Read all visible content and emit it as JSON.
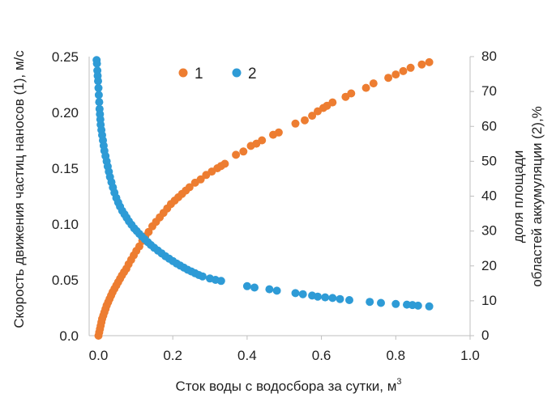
{
  "chart_data": {
    "type": "scatter",
    "xlabel": "Сток воды с водосбора за сутки, м",
    "xlabel_sup": "3",
    "ylabel_left": "Скорость движения частиц наносов (1), м/с",
    "ylabel_right_line1": "доля площади",
    "ylabel_right_line2": "областей аккумуляции (2),%",
    "xlim": [
      -0.025,
      1.0
    ],
    "ylim_left": [
      0,
      0.25
    ],
    "ylim_right": [
      0,
      80
    ],
    "x_ticks": [
      0.0,
      0.2,
      0.4,
      0.6,
      0.8,
      1.0
    ],
    "x_tick_labels": [
      "0.0",
      "0.2",
      "0.4",
      "0.6",
      "0.8",
      "1.0"
    ],
    "y_left_ticks": [
      0,
      0.05,
      0.1,
      0.15,
      0.2,
      0.25
    ],
    "y_left_tick_labels": [
      "0.0",
      "0.05",
      "0.10",
      "0.15",
      "0.20",
      "0.25"
    ],
    "y_right_ticks": [
      0,
      10,
      20,
      30,
      40,
      50,
      60,
      70,
      80
    ],
    "y_right_tick_labels": [
      "0",
      "10",
      "20",
      "30",
      "40",
      "50",
      "60",
      "70",
      "80"
    ],
    "grid": false,
    "legend_position": "top-center",
    "series": [
      {
        "name": "1",
        "axis": "left",
        "color": "#ed7d31",
        "points": [
          [
            0.0,
            0.0
          ],
          [
            0.002,
            0.003
          ],
          [
            0.004,
            0.006
          ],
          [
            0.006,
            0.009
          ],
          [
            0.008,
            0.012
          ],
          [
            0.01,
            0.015
          ],
          [
            0.013,
            0.018
          ],
          [
            0.016,
            0.021
          ],
          [
            0.019,
            0.024
          ],
          [
            0.022,
            0.027
          ],
          [
            0.026,
            0.03
          ],
          [
            0.03,
            0.033
          ],
          [
            0.034,
            0.036
          ],
          [
            0.038,
            0.039
          ],
          [
            0.043,
            0.042
          ],
          [
            0.048,
            0.045
          ],
          [
            0.053,
            0.048
          ],
          [
            0.058,
            0.051
          ],
          [
            0.063,
            0.054
          ],
          [
            0.069,
            0.057
          ],
          [
            0.075,
            0.06
          ],
          [
            0.081,
            0.064
          ],
          [
            0.088,
            0.068
          ],
          [
            0.095,
            0.072
          ],
          [
            0.102,
            0.076
          ],
          [
            0.11,
            0.08
          ],
          [
            0.118,
            0.085
          ],
          [
            0.126,
            0.089
          ],
          [
            0.135,
            0.093
          ],
          [
            0.145,
            0.098
          ],
          [
            0.155,
            0.102
          ],
          [
            0.165,
            0.106
          ],
          [
            0.175,
            0.11
          ],
          [
            0.185,
            0.114
          ],
          [
            0.195,
            0.118
          ],
          [
            0.205,
            0.121
          ],
          [
            0.215,
            0.124
          ],
          [
            0.225,
            0.127
          ],
          [
            0.235,
            0.13
          ],
          [
            0.245,
            0.133
          ],
          [
            0.26,
            0.137
          ],
          [
            0.275,
            0.14
          ],
          [
            0.29,
            0.144
          ],
          [
            0.305,
            0.147
          ],
          [
            0.32,
            0.15
          ],
          [
            0.33,
            0.152
          ],
          [
            0.34,
            0.154
          ],
          [
            0.37,
            0.162
          ],
          [
            0.39,
            0.165
          ],
          [
            0.41,
            0.17
          ],
          [
            0.425,
            0.172
          ],
          [
            0.44,
            0.175
          ],
          [
            0.47,
            0.18
          ],
          [
            0.485,
            0.182
          ],
          [
            0.53,
            0.19
          ],
          [
            0.555,
            0.193
          ],
          [
            0.575,
            0.197
          ],
          [
            0.59,
            0.201
          ],
          [
            0.605,
            0.204
          ],
          [
            0.615,
            0.206
          ],
          [
            0.63,
            0.209
          ],
          [
            0.665,
            0.214
          ],
          [
            0.68,
            0.217
          ],
          [
            0.72,
            0.222
          ],
          [
            0.74,
            0.226
          ],
          [
            0.78,
            0.231
          ],
          [
            0.8,
            0.234
          ],
          [
            0.82,
            0.237
          ],
          [
            0.84,
            0.24
          ],
          [
            0.87,
            0.243
          ],
          [
            0.89,
            0.245
          ]
        ]
      },
      {
        "name": "2",
        "axis": "right",
        "color": "#2e9bd6",
        "points": [
          [
            -0.005,
            79
          ],
          [
            -0.004,
            78
          ],
          [
            -0.003,
            76
          ],
          [
            -0.002,
            74.5
          ],
          [
            -0.001,
            73
          ],
          [
            0.0,
            71
          ],
          [
            0.001,
            69
          ],
          [
            0.002,
            67
          ],
          [
            0.003,
            65
          ],
          [
            0.004,
            63.5
          ],
          [
            0.005,
            62
          ],
          [
            0.006,
            60.5
          ],
          [
            0.008,
            59
          ],
          [
            0.01,
            57.5
          ],
          [
            0.012,
            56
          ],
          [
            0.014,
            54.5
          ],
          [
            0.016,
            53
          ],
          [
            0.019,
            51.5
          ],
          [
            0.022,
            50
          ],
          [
            0.025,
            48.5
          ],
          [
            0.028,
            47
          ],
          [
            0.031,
            45.5
          ],
          [
            0.035,
            44
          ],
          [
            0.039,
            42.5
          ],
          [
            0.043,
            41
          ],
          [
            0.048,
            39.5
          ],
          [
            0.053,
            38.2
          ],
          [
            0.058,
            37
          ],
          [
            0.064,
            35.8
          ],
          [
            0.07,
            34.8
          ],
          [
            0.076,
            33.8
          ],
          [
            0.082,
            32.8
          ],
          [
            0.089,
            31.8
          ],
          [
            0.096,
            30.8
          ],
          [
            0.103,
            30
          ],
          [
            0.11,
            29.2
          ],
          [
            0.117,
            28.4
          ],
          [
            0.125,
            27.6
          ],
          [
            0.133,
            26.8
          ],
          [
            0.141,
            26
          ],
          [
            0.15,
            25.2
          ],
          [
            0.16,
            24.4
          ],
          [
            0.17,
            23.6
          ],
          [
            0.18,
            22.8
          ],
          [
            0.19,
            22.1
          ],
          [
            0.2,
            21.4
          ],
          [
            0.21,
            20.7
          ],
          [
            0.22,
            20.1
          ],
          [
            0.23,
            19.5
          ],
          [
            0.24,
            18.9
          ],
          [
            0.25,
            18.4
          ],
          [
            0.26,
            17.9
          ],
          [
            0.27,
            17.4
          ],
          [
            0.28,
            17.0
          ],
          [
            0.3,
            16.4
          ],
          [
            0.315,
            16.0
          ],
          [
            0.33,
            15.7
          ],
          [
            0.4,
            14.2
          ],
          [
            0.42,
            13.8
          ],
          [
            0.46,
            13.3
          ],
          [
            0.48,
            12.9
          ],
          [
            0.53,
            12.2
          ],
          [
            0.55,
            11.9
          ],
          [
            0.575,
            11.5
          ],
          [
            0.59,
            11.2
          ],
          [
            0.61,
            11.0
          ],
          [
            0.63,
            10.8
          ],
          [
            0.65,
            10.5
          ],
          [
            0.675,
            10.2
          ],
          [
            0.73,
            9.7
          ],
          [
            0.76,
            9.4
          ],
          [
            0.8,
            9.1
          ],
          [
            0.83,
            8.9
          ],
          [
            0.845,
            8.8
          ],
          [
            0.86,
            8.6
          ],
          [
            0.89,
            8.4
          ]
        ]
      }
    ]
  }
}
